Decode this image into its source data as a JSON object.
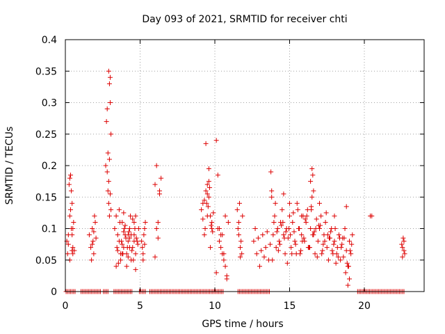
{
  "chart_data": {
    "type": "scatter",
    "title": "Day 093 of 2021, SRMTID for receiver chti",
    "xlabel": "GPS time / hours",
    "ylabel": "SRMTID / TECUs",
    "xlim": [
      0,
      24
    ],
    "ylim": [
      0,
      0.4
    ],
    "xticks": [
      0,
      5,
      10,
      15,
      20
    ],
    "xtick_labels": [
      "0",
      "5",
      "10",
      "15",
      "20"
    ],
    "yticks": [
      0,
      0.05,
      0.1,
      0.15,
      0.2,
      0.25,
      0.3,
      0.35,
      0.4
    ],
    "ytick_labels": [
      "0",
      "0.05",
      "0.1",
      "0.15",
      "0.2",
      "0.25",
      "0.3",
      "0.35",
      "0.4"
    ],
    "grid": true,
    "marker": "+",
    "color": "#dd0000",
    "series": [
      {
        "name": "SRMTID",
        "x": [
          0.1,
          0.15,
          0.2,
          0.25,
          0.3,
          0.35,
          0.4,
          0.45,
          0.5,
          0.2,
          0.3,
          0.4,
          0.45,
          0.5,
          0.55,
          0.3,
          0.35,
          0.45,
          0.5,
          0.6,
          1.6,
          1.7,
          1.8,
          1.9,
          2.0,
          1.75,
          1.85,
          1.95,
          2.05,
          1.8,
          1.9,
          2.7,
          2.75,
          2.8,
          2.85,
          2.9,
          2.95,
          3.0,
          3.05,
          2.8,
          2.85,
          2.9,
          2.95,
          3.0,
          2.9,
          2.95,
          3.0,
          3.05,
          3.3,
          3.4,
          3.5,
          3.6,
          3.7,
          3.8,
          3.9,
          4.0,
          4.1,
          4.2,
          4.3,
          4.4,
          4.5,
          4.6,
          4.7,
          4.8,
          4.9,
          3.5,
          3.7,
          3.9,
          4.1,
          4.3,
          4.5,
          4.7,
          3.6,
          3.8,
          4.0,
          4.2,
          4.4,
          4.6,
          3.45,
          3.65,
          3.85,
          4.05,
          4.25,
          4.45,
          4.65,
          4.85,
          3.55,
          3.75,
          3.95,
          4.15,
          4.35,
          4.55,
          4.75,
          3.4,
          3.8,
          4.2,
          4.6,
          3.9,
          4.3,
          4.7,
          5.1,
          5.2,
          5.3,
          5.15,
          5.25,
          5.35,
          5.2,
          5.3,
          6.0,
          6.1,
          6.2,
          6.3,
          6.4,
          6.1,
          6.3,
          6.2,
          6.0,
          9.1,
          9.2,
          9.3,
          9.4,
          9.5,
          9.6,
          9.7,
          9.8,
          9.2,
          9.4,
          9.6,
          9.8,
          9.3,
          9.5,
          9.7,
          9.6,
          9.5,
          9.55,
          9.65,
          9.75,
          9.9,
          9.35,
          9.45,
          9.85,
          10.1,
          10.2,
          10.3,
          10.4,
          10.5,
          10.6,
          10.7,
          10.8,
          10.9,
          10.3,
          10.5,
          10.7,
          10.4,
          10.6,
          10.2,
          10.1,
          10.8,
          11.5,
          11.6,
          11.7,
          11.8,
          11.55,
          11.65,
          11.75,
          11.6,
          11.7,
          11.85,
          12.6,
          12.8,
          13.0,
          13.2,
          13.4,
          13.6,
          12.7,
          12.9,
          13.1,
          13.3,
          13.5,
          13.7,
          13.8,
          13.9,
          14.0,
          14.1,
          14.2,
          14.3,
          14.4,
          14.5,
          14.6,
          14.7,
          14.8,
          14.9,
          15.0,
          15.1,
          15.2,
          15.3,
          15.4,
          15.5,
          15.6,
          15.7,
          15.8,
          15.9,
          16.0,
          16.1,
          16.2,
          16.3,
          16.4,
          16.5,
          16.6,
          16.7,
          16.8,
          16.9,
          17.0,
          17.1,
          17.2,
          17.3,
          17.4,
          17.5,
          17.6,
          17.7,
          17.8,
          17.9,
          18.0,
          18.1,
          18.2,
          18.3,
          18.4,
          18.5,
          18.6,
          18.7,
          18.8,
          18.9,
          19.0,
          19.1,
          19.2,
          13.85,
          14.05,
          14.25,
          14.45,
          14.65,
          14.85,
          15.05,
          15.25,
          15.45,
          15.65,
          15.85,
          16.05,
          16.25,
          16.45,
          16.65,
          16.85,
          17.05,
          17.25,
          17.45,
          17.65,
          17.85,
          18.05,
          18.25,
          18.45,
          18.65,
          18.85,
          19.05,
          13.95,
          14.35,
          14.75,
          15.15,
          15.55,
          15.95,
          16.35,
          16.75,
          17.15,
          17.55,
          17.95,
          18.35,
          18.75,
          19.15,
          14.15,
          14.55,
          14.95,
          15.35,
          15.75,
          16.15,
          16.55,
          16.95,
          17.35,
          17.75,
          18.15,
          18.55,
          18.95,
          13.75,
          13.8,
          14.6,
          15.0,
          15.8,
          16.4,
          16.5,
          16.6,
          16.45,
          16.55,
          17.0,
          18.0,
          18.9,
          19.0,
          18.8,
          20.4,
          20.5,
          22.5,
          22.55,
          22.6,
          22.65,
          22.7,
          22.55,
          22.65
        ],
        "y": [
          0.08,
          0.06,
          0.09,
          0.17,
          0.18,
          0.13,
          0.1,
          0.065,
          0.07,
          0.075,
          0.05,
          0.16,
          0.14,
          0.06,
          0.11,
          0.12,
          0.185,
          0.09,
          0.1,
          0.065,
          0.09,
          0.07,
          0.1,
          0.06,
          0.11,
          0.05,
          0.08,
          0.12,
          0.085,
          0.075,
          0.095,
          0.2,
          0.27,
          0.29,
          0.22,
          0.35,
          0.33,
          0.3,
          0.25,
          0.19,
          0.16,
          0.14,
          0.21,
          0.34,
          0.175,
          0.12,
          0.155,
          0.13,
          0.1,
          0.12,
          0.09,
          0.08,
          0.06,
          0.11,
          0.07,
          0.09,
          0.06,
          0.08,
          0.1,
          0.05,
          0.07,
          0.09,
          0.12,
          0.08,
          0.1,
          0.065,
          0.05,
          0.095,
          0.04,
          0.085,
          0.115,
          0.06,
          0.13,
          0.075,
          0.105,
          0.055,
          0.09,
          0.08,
          0.07,
          0.11,
          0.06,
          0.085,
          0.095,
          0.065,
          0.1,
          0.075,
          0.045,
          0.08,
          0.1,
          0.07,
          0.12,
          0.05,
          0.085,
          0.04,
          0.06,
          0.09,
          0.11,
          0.125,
          0.07,
          0.035,
          0.08,
          0.06,
          0.1,
          0.07,
          0.09,
          0.11,
          0.05,
          0.075,
          0.17,
          0.2,
          0.11,
          0.16,
          0.18,
          0.1,
          0.155,
          0.085,
          0.055,
          0.13,
          0.14,
          0.09,
          0.16,
          0.17,
          0.15,
          0.12,
          0.11,
          0.115,
          0.235,
          0.195,
          0.1,
          0.145,
          0.12,
          0.07,
          0.175,
          0.155,
          0.135,
          0.165,
          0.105,
          0.125,
          0.1,
          0.14,
          0.095,
          0.24,
          0.185,
          0.1,
          0.09,
          0.06,
          0.05,
          0.04,
          0.025,
          0.11,
          0.08,
          0.09,
          0.12,
          0.07,
          0.06,
          0.1,
          0.03,
          0.02,
          0.13,
          0.09,
          0.07,
          0.06,
          0.1,
          0.14,
          0.08,
          0.11,
          0.055,
          0.12,
          0.08,
          0.06,
          0.04,
          0.09,
          0.07,
          0.05,
          0.1,
          0.085,
          0.065,
          0.055,
          0.095,
          0.075,
          0.16,
          0.09,
          0.12,
          0.07,
          0.1,
          0.08,
          0.11,
          0.13,
          0.09,
          0.06,
          0.1,
          0.085,
          0.12,
          0.07,
          0.11,
          0.095,
          0.075,
          0.14,
          0.1,
          0.06,
          0.09,
          0.12,
          0.08,
          0.11,
          0.13,
          0.07,
          0.1,
          0.15,
          0.09,
          0.06,
          0.115,
          0.08,
          0.1,
          0.12,
          0.065,
          0.09,
          0.11,
          0.07,
          0.05,
          0.085,
          0.1,
          0.06,
          0.08,
          0.045,
          0.07,
          0.09,
          0.05,
          0.075,
          0.055,
          0.1,
          0.065,
          0.04,
          0.08,
          0.06,
          0.09,
          0.05,
          0.14,
          0.065,
          0.105,
          0.085,
          0.045,
          0.09,
          0.125,
          0.06,
          0.1,
          0.08,
          0.115,
          0.07,
          0.135,
          0.095,
          0.055,
          0.105,
          0.075,
          0.125,
          0.085,
          0.065,
          0.1,
          0.055,
          0.07,
          0.085,
          0.045,
          0.065,
          0.11,
          0.075,
          0.095,
          0.06,
          0.13,
          0.085,
          0.07,
          0.1,
          0.06,
          0.09,
          0.075,
          0.085,
          0.03,
          0.075,
          0.095,
          0.11,
          0.1,
          0.08,
          0.065,
          0.12,
          0.09,
          0.105,
          0.08,
          0.095,
          0.06,
          0.085,
          0.04,
          0.19,
          0.15,
          0.155,
          0.14,
          0.12,
          0.175,
          0.195,
          0.16,
          0.13,
          0.185,
          0.14,
          0.12,
          0.01,
          0.02,
          0.135,
          0.12,
          0.12,
          0.075,
          0.055,
          0.085,
          0.065,
          0.06,
          0.07,
          0.08
        ]
      },
      {
        "name": "zero-level",
        "x": [
          0.05,
          0.15,
          0.25,
          0.35,
          0.45,
          0.55,
          0.65,
          1.05,
          1.15,
          1.25,
          1.35,
          1.45,
          1.55,
          1.65,
          1.75,
          1.85,
          1.95,
          2.05,
          2.15,
          2.25,
          2.35,
          2.55,
          2.65,
          2.75,
          2.85,
          3.25,
          3.35,
          3.45,
          3.55,
          3.65,
          3.75,
          3.85,
          3.95,
          4.05,
          4.15,
          4.25,
          4.35,
          4.45,
          4.95,
          5.05,
          5.15,
          5.25,
          5.35,
          5.65,
          5.75,
          5.85,
          5.95,
          6.05,
          6.15,
          6.25,
          6.35,
          6.45,
          6.55,
          6.65,
          6.75,
          6.85,
          6.95,
          7.05,
          7.15,
          7.25,
          7.35,
          7.45,
          7.55,
          7.65,
          7.75,
          7.85,
          7.95,
          8.05,
          8.15,
          8.25,
          8.35,
          8.45,
          8.55,
          8.65,
          8.75,
          8.85,
          8.95,
          9.05,
          9.15,
          9.25,
          9.35,
          9.45,
          9.55,
          9.65,
          9.75,
          9.85,
          9.95,
          10.05,
          10.15,
          10.25,
          10.35,
          10.45,
          10.55,
          11.55,
          11.65,
          11.75,
          11.85,
          11.95,
          12.05,
          12.15,
          12.25,
          12.35,
          12.45,
          12.55,
          12.65,
          12.75,
          12.85,
          12.95,
          13.05,
          13.15,
          13.25,
          13.35,
          13.45,
          13.55,
          13.65,
          19.55,
          19.65,
          19.75,
          19.85,
          19.95,
          20.05,
          20.15,
          20.25,
          20.35,
          20.45,
          20.55,
          20.65,
          20.75,
          20.85,
          20.95,
          21.05,
          21.15,
          21.25,
          21.35,
          21.45,
          21.55,
          21.65,
          21.75,
          21.85,
          21.95,
          22.05,
          22.15,
          22.25,
          22.35,
          22.45,
          22.55,
          22.65
        ],
        "y_value": 0
      }
    ]
  }
}
